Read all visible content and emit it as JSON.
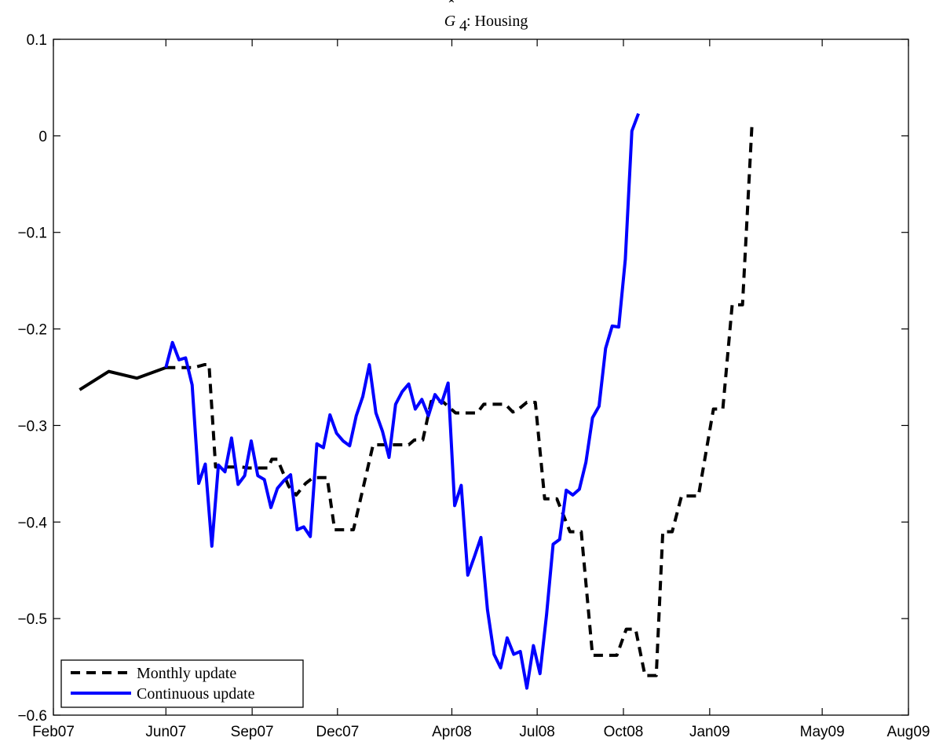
{
  "chart_data": {
    "type": "line",
    "title": {
      "main": "G",
      "subscript": "4",
      "suffix": ": Housing"
    },
    "xlabel": "",
    "ylabel": "",
    "xlim": [
      "2007-02-01",
      "2009-08-01"
    ],
    "ylim": [
      -0.6,
      0.1
    ],
    "x_ticks": [
      {
        "date": "2007-02-01",
        "label": "Feb07"
      },
      {
        "date": "2007-06-01",
        "label": "Jun07"
      },
      {
        "date": "2007-09-01",
        "label": "Sep07"
      },
      {
        "date": "2007-12-01",
        "label": "Dec07"
      },
      {
        "date": "2008-04-01",
        "label": "Apr08"
      },
      {
        "date": "2008-07-01",
        "label": "Jul08"
      },
      {
        "date": "2008-10-01",
        "label": "Oct08"
      },
      {
        "date": "2009-01-01",
        "label": "Jan09"
      },
      {
        "date": "2009-05-01",
        "label": "May09"
      },
      {
        "date": "2009-08-01",
        "label": "Aug09"
      }
    ],
    "y_ticks": [
      {
        "value": 0.1,
        "label": "0.1"
      },
      {
        "value": 0.0,
        "label": "0"
      },
      {
        "value": -0.1,
        "label": "-0.1"
      },
      {
        "value": -0.2,
        "label": "-0.2"
      },
      {
        "value": -0.3,
        "label": "-0.3"
      },
      {
        "value": -0.4,
        "label": "-0.4"
      },
      {
        "value": -0.5,
        "label": "-0.5"
      },
      {
        "value": -0.6,
        "label": "-0.6"
      }
    ],
    "grid": false,
    "legend_position": "bottom-left",
    "series": [
      {
        "name": "",
        "color": "#000000",
        "style": "solid",
        "points": [
          [
            "2007-03-01",
            -0.263
          ],
          [
            "2007-04-01",
            -0.244
          ],
          [
            "2007-05-01",
            -0.251
          ],
          [
            "2007-06-01",
            -0.24
          ]
        ]
      },
      {
        "name": "Monthly update",
        "color": "#000000",
        "style": "dashed",
        "points": [
          [
            "2007-06-01",
            -0.24
          ],
          [
            "2007-07-01",
            -0.24
          ],
          [
            "2007-07-12",
            -0.237
          ],
          [
            "2007-07-17",
            -0.237
          ],
          [
            "2007-07-24",
            -0.343
          ],
          [
            "2007-08-21",
            -0.343
          ],
          [
            "2007-08-28",
            -0.344
          ],
          [
            "2007-09-18",
            -0.344
          ],
          [
            "2007-09-22",
            -0.335
          ],
          [
            "2007-09-28",
            -0.335
          ],
          [
            "2007-10-10",
            -0.363
          ],
          [
            "2007-10-18",
            -0.372
          ],
          [
            "2007-10-28",
            -0.36
          ],
          [
            "2007-11-05",
            -0.354
          ],
          [
            "2007-11-20",
            -0.354
          ],
          [
            "2007-11-28",
            -0.408
          ],
          [
            "2007-12-18",
            -0.408
          ],
          [
            "2008-01-08",
            -0.32
          ],
          [
            "2008-01-20",
            -0.32
          ],
          [
            "2008-02-15",
            -0.32
          ],
          [
            "2008-02-21",
            -0.315
          ],
          [
            "2008-03-01",
            -0.315
          ],
          [
            "2008-03-10",
            -0.275
          ],
          [
            "2008-03-22",
            -0.275
          ],
          [
            "2008-04-05",
            -0.287
          ],
          [
            "2008-04-28",
            -0.287
          ],
          [
            "2008-05-05",
            -0.278
          ],
          [
            "2008-05-28",
            -0.278
          ],
          [
            "2008-06-05",
            -0.286
          ],
          [
            "2008-06-10",
            -0.284
          ],
          [
            "2008-06-20",
            -0.276
          ],
          [
            "2008-06-29",
            -0.276
          ],
          [
            "2008-07-09",
            -0.376
          ],
          [
            "2008-07-22",
            -0.376
          ],
          [
            "2008-08-05",
            -0.41
          ],
          [
            "2008-08-17",
            -0.41
          ],
          [
            "2008-08-29",
            -0.538
          ],
          [
            "2008-09-24",
            -0.538
          ],
          [
            "2008-10-04",
            -0.511
          ],
          [
            "2008-10-14",
            -0.511
          ],
          [
            "2008-10-24",
            -0.559
          ],
          [
            "2008-11-05",
            -0.559
          ],
          [
            "2008-11-12",
            -0.41
          ],
          [
            "2008-11-22",
            -0.41
          ],
          [
            "2008-12-02",
            -0.373
          ],
          [
            "2008-12-20",
            -0.373
          ],
          [
            "2009-01-05",
            -0.283
          ],
          [
            "2009-01-15",
            -0.283
          ],
          [
            "2009-01-25",
            -0.175
          ],
          [
            "2009-02-05",
            -0.175
          ],
          [
            "2009-02-15",
            0.01
          ]
        ]
      },
      {
        "name": "Continuous update",
        "color": "#0000ff",
        "style": "solid",
        "points": [
          [
            "2007-06-01",
            -0.24
          ],
          [
            "2007-06-08",
            -0.214
          ],
          [
            "2007-06-15",
            -0.232
          ],
          [
            "2007-06-22",
            -0.23
          ],
          [
            "2007-06-29",
            -0.258
          ],
          [
            "2007-07-06",
            -0.36
          ],
          [
            "2007-07-13",
            -0.34
          ],
          [
            "2007-07-20",
            -0.425
          ],
          [
            "2007-07-27",
            -0.341
          ],
          [
            "2007-08-03",
            -0.348
          ],
          [
            "2007-08-10",
            -0.313
          ],
          [
            "2007-08-17",
            -0.361
          ],
          [
            "2007-08-24",
            -0.352
          ],
          [
            "2007-08-31",
            -0.316
          ],
          [
            "2007-09-07",
            -0.352
          ],
          [
            "2007-09-14",
            -0.356
          ],
          [
            "2007-09-21",
            -0.385
          ],
          [
            "2007-09-28",
            -0.365
          ],
          [
            "2007-10-05",
            -0.357
          ],
          [
            "2007-10-12",
            -0.351
          ],
          [
            "2007-10-19",
            -0.408
          ],
          [
            "2007-10-26",
            -0.405
          ],
          [
            "2007-11-02",
            -0.415
          ],
          [
            "2007-11-09",
            -0.319
          ],
          [
            "2007-11-16",
            -0.323
          ],
          [
            "2007-11-23",
            -0.289
          ],
          [
            "2007-11-30",
            -0.308
          ],
          [
            "2007-12-07",
            -0.316
          ],
          [
            "2007-12-14",
            -0.321
          ],
          [
            "2007-12-21",
            -0.29
          ],
          [
            "2007-12-28",
            -0.27
          ],
          [
            "2008-01-04",
            -0.237
          ],
          [
            "2008-01-11",
            -0.287
          ],
          [
            "2008-01-18",
            -0.306
          ],
          [
            "2008-01-25",
            -0.333
          ],
          [
            "2008-02-01",
            -0.278
          ],
          [
            "2008-02-08",
            -0.265
          ],
          [
            "2008-02-15",
            -0.257
          ],
          [
            "2008-02-22",
            -0.283
          ],
          [
            "2008-02-29",
            -0.273
          ],
          [
            "2008-03-07",
            -0.29
          ],
          [
            "2008-03-14",
            -0.268
          ],
          [
            "2008-03-21",
            -0.277
          ],
          [
            "2008-03-28",
            -0.256
          ],
          [
            "2008-04-04",
            -0.383
          ],
          [
            "2008-04-11",
            -0.362
          ],
          [
            "2008-04-18",
            -0.455
          ],
          [
            "2008-04-25",
            -0.436
          ],
          [
            "2008-05-02",
            -0.416
          ],
          [
            "2008-05-09",
            -0.491
          ],
          [
            "2008-05-16",
            -0.537
          ],
          [
            "2008-05-23",
            -0.551
          ],
          [
            "2008-05-30",
            -0.52
          ],
          [
            "2008-06-06",
            -0.537
          ],
          [
            "2008-06-13",
            -0.534
          ],
          [
            "2008-06-20",
            -0.572
          ],
          [
            "2008-06-27",
            -0.528
          ],
          [
            "2008-07-04",
            -0.557
          ],
          [
            "2008-07-11",
            -0.496
          ],
          [
            "2008-07-18",
            -0.423
          ],
          [
            "2008-07-25",
            -0.418
          ],
          [
            "2008-08-01",
            -0.367
          ],
          [
            "2008-08-08",
            -0.372
          ],
          [
            "2008-08-15",
            -0.366
          ],
          [
            "2008-08-22",
            -0.338
          ],
          [
            "2008-08-29",
            -0.292
          ],
          [
            "2008-09-05",
            -0.28
          ],
          [
            "2008-09-12",
            -0.22
          ],
          [
            "2008-09-19",
            -0.197
          ],
          [
            "2008-09-26",
            -0.198
          ],
          [
            "2008-10-03",
            -0.128
          ],
          [
            "2008-10-10",
            0.005
          ],
          [
            "2008-10-17",
            0.023
          ]
        ]
      }
    ]
  }
}
